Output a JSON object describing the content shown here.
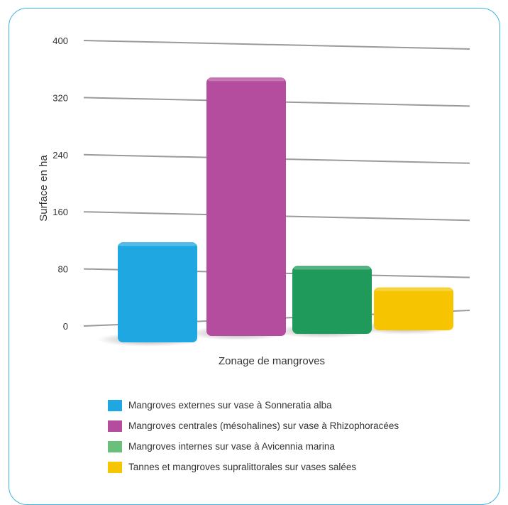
{
  "chart_data": {
    "type": "bar",
    "title": "",
    "xlabel": "Zonage de mangroves",
    "ylabel": "Surface en ha",
    "ylim": [
      0,
      400
    ],
    "yticks": [
      0,
      80,
      160,
      240,
      320,
      400
    ],
    "grid": true,
    "legend_position": "bottom",
    "series": [
      {
        "name": "Mangroves externes sur vase à Sonneratia alba",
        "value": 140,
        "color": "#1ea7e1"
      },
      {
        "name": "Mangroves centrales (mésohalines) sur vase à Rhizophoracées",
        "value": 362,
        "color": "#b54d9e"
      },
      {
        "name": "Mangroves internes sur vase à Avicennia marina",
        "value": 95,
        "color": "#1f9a5b"
      },
      {
        "name": "Tannes et mangroves supralittorales sur vases salées",
        "value": 60,
        "color": "#f6c400"
      }
    ],
    "legend_swatch_colors": [
      "#1ea7e1",
      "#b54d9e",
      "#6abf7b",
      "#f6c400"
    ]
  }
}
